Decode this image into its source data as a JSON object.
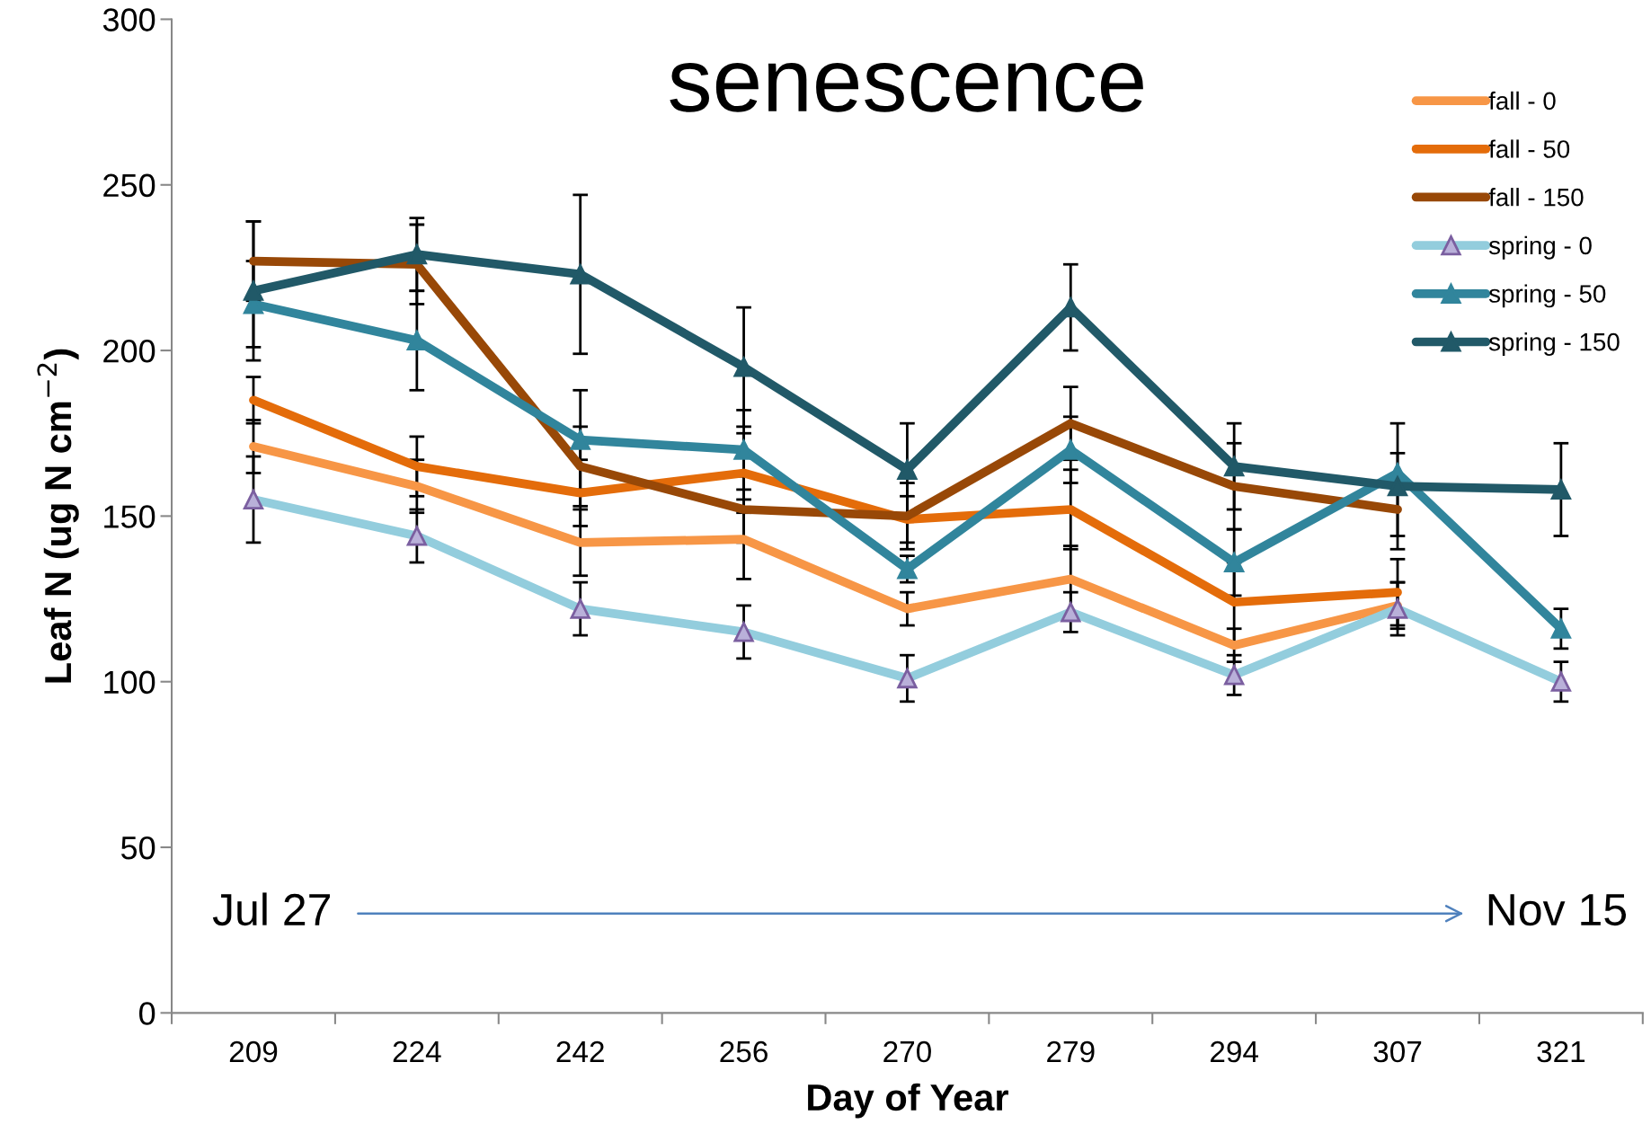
{
  "chart_data": {
    "type": "line",
    "title": "senescence",
    "xlabel": "Day of Year",
    "ylabel": "Leaf N (ug N cm$^{−2}$)",
    "categories": [
      "209",
      "224",
      "242",
      "256",
      "270",
      "279",
      "294",
      "307",
      "321"
    ],
    "ylim": [
      0,
      300
    ],
    "yticks": [
      0,
      50,
      100,
      150,
      200,
      250,
      300
    ],
    "grid": false,
    "legend": "top right",
    "line_style": "solid",
    "annotations": [
      "Jul 27",
      "Nov 15"
    ],
    "series": [
      {
        "name": "fall - 0",
        "color": "#f79646",
        "marker": "none",
        "values": [
          171,
          159,
          142,
          143,
          122,
          131,
          111,
          123,
          null
        ],
        "errors": [
          8,
          8,
          10,
          12,
          5,
          10,
          5,
          7,
          null
        ]
      },
      {
        "name": "fall - 50",
        "color": "#e46c0a",
        "marker": "none",
        "values": [
          185,
          165,
          157,
          163,
          149,
          152,
          124,
          127,
          null
        ],
        "errors": [
          7,
          9,
          10,
          12,
          7,
          12,
          12,
          10,
          null
        ]
      },
      {
        "name": "fall - 150",
        "color": "#984807",
        "marker": "none",
        "values": [
          227,
          226,
          165,
          152,
          150,
          178,
          159,
          152,
          null
        ],
        "errors": [
          12,
          12,
          12,
          10,
          10,
          11,
          13,
          8,
          null
        ]
      },
      {
        "name": "spring - 0",
        "color": "#93cddd",
        "marker": "triangle",
        "values": [
          155,
          144,
          122,
          115,
          101,
          121,
          102,
          122,
          100
        ],
        "errors": [
          13,
          8,
          8,
          8,
          7,
          6,
          6,
          8,
          6
        ]
      },
      {
        "name": "spring - 50",
        "color": "#31859c",
        "marker": "triangle",
        "values": [
          214,
          203,
          173,
          170,
          134,
          170,
          136,
          163,
          116
        ],
        "errors": [
          13,
          15,
          15,
          12,
          4,
          10,
          10,
          6,
          6
        ]
      },
      {
        "name": "spring - 150",
        "color": "#215968",
        "marker": "triangle",
        "values": [
          218,
          229,
          223,
          195,
          164,
          213,
          165,
          159,
          158
        ],
        "errors": [
          21,
          11,
          24,
          18,
          14,
          13,
          13,
          19,
          14
        ]
      }
    ]
  }
}
